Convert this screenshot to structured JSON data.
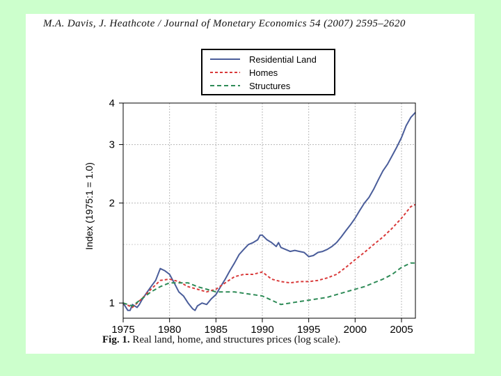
{
  "header": {
    "citation": "M.A. Davis, J. Heathcote / Journal of Monetary Economics 54 (2007) 2595–2620"
  },
  "caption": {
    "label": "Fig. 1.",
    "text": "Real land, home, and structures prices (log scale)."
  },
  "chart_data": {
    "type": "line",
    "title": "",
    "xlabel": "",
    "ylabel": "Index (1975:1 = 1.0)",
    "y_scale": "log",
    "xlim": [
      1975,
      2006.5
    ],
    "ylim": [
      0.9,
      4.0
    ],
    "x_ticks": [
      "1975",
      "1980",
      "1985",
      "1990",
      "1995",
      "2000",
      "2005"
    ],
    "y_ticks": [
      "1",
      "2",
      "3",
      "4"
    ],
    "grid": true,
    "legend": {
      "position": "top-center"
    },
    "series": [
      {
        "name": "Residential Land",
        "color": "#4a5d9a",
        "style": "solid",
        "x": [
          1975.0,
          1975.5,
          1975.75,
          1976.0,
          1976.5,
          1976.75,
          1977.0,
          1977.5,
          1978.0,
          1978.5,
          1979.0,
          1979.5,
          1980.0,
          1980.5,
          1981.0,
          1981.5,
          1982.0,
          1982.5,
          1982.75,
          1983.0,
          1983.5,
          1984.0,
          1984.5,
          1985.0,
          1985.5,
          1986.0,
          1986.5,
          1987.0,
          1987.5,
          1988.0,
          1988.5,
          1989.0,
          1989.5,
          1989.75,
          1990.0,
          1990.5,
          1991.0,
          1991.5,
          1991.75,
          1992.0,
          1992.5,
          1993.0,
          1993.5,
          1994.0,
          1994.5,
          1995.0,
          1995.5,
          1996.0,
          1996.5,
          1997.0,
          1997.5,
          1998.0,
          1998.5,
          1999.0,
          1999.5,
          2000.0,
          2000.5,
          2001.0,
          2001.5,
          2002.0,
          2002.5,
          2003.0,
          2003.5,
          2004.0,
          2004.5,
          2005.0,
          2005.5,
          2006.0,
          2006.5
        ],
        "values": [
          1.0,
          0.95,
          0.95,
          0.99,
          0.97,
          0.99,
          1.02,
          1.07,
          1.12,
          1.17,
          1.27,
          1.25,
          1.22,
          1.15,
          1.08,
          1.05,
          1.0,
          0.96,
          0.95,
          0.98,
          1.0,
          0.99,
          1.03,
          1.06,
          1.12,
          1.18,
          1.25,
          1.32,
          1.4,
          1.45,
          1.5,
          1.52,
          1.55,
          1.6,
          1.6,
          1.55,
          1.52,
          1.48,
          1.52,
          1.47,
          1.45,
          1.43,
          1.44,
          1.43,
          1.42,
          1.38,
          1.39,
          1.42,
          1.43,
          1.45,
          1.48,
          1.52,
          1.58,
          1.65,
          1.72,
          1.8,
          1.9,
          2.0,
          2.08,
          2.2,
          2.35,
          2.5,
          2.62,
          2.78,
          2.95,
          3.15,
          3.42,
          3.62,
          3.75
        ]
      },
      {
        "name": "Homes",
        "color": "#d93a3a",
        "style": "dashed",
        "x": [
          1975,
          1976,
          1977,
          1978,
          1979,
          1980,
          1981,
          1982,
          1983,
          1984,
          1985,
          1986,
          1987,
          1988,
          1989,
          1990,
          1991,
          1992,
          1993,
          1994,
          1995,
          1996,
          1997,
          1998,
          1999,
          2000,
          2001,
          2002,
          2003,
          2004,
          2005,
          2006,
          2006.5
        ],
        "values": [
          1.0,
          0.97,
          1.03,
          1.1,
          1.17,
          1.18,
          1.16,
          1.12,
          1.1,
          1.08,
          1.1,
          1.15,
          1.2,
          1.22,
          1.22,
          1.24,
          1.18,
          1.16,
          1.15,
          1.16,
          1.16,
          1.17,
          1.19,
          1.22,
          1.28,
          1.35,
          1.42,
          1.5,
          1.58,
          1.68,
          1.8,
          1.95,
          1.98
        ]
      },
      {
        "name": "Structures",
        "color": "#2e8b57",
        "style": "dashed",
        "x": [
          1975,
          1976,
          1977,
          1978,
          1979,
          1980,
          1981,
          1982,
          1983,
          1984,
          1985,
          1986,
          1987,
          1988,
          1989,
          1990,
          1991,
          1992,
          1993,
          1994,
          1995,
          1996,
          1997,
          1998,
          1999,
          2000,
          2001,
          2002,
          2003,
          2004,
          2005,
          2006,
          2006.5
        ],
        "values": [
          1.0,
          0.98,
          1.03,
          1.08,
          1.12,
          1.15,
          1.15,
          1.15,
          1.12,
          1.1,
          1.08,
          1.08,
          1.08,
          1.07,
          1.06,
          1.05,
          1.02,
          0.99,
          1.0,
          1.01,
          1.02,
          1.03,
          1.04,
          1.06,
          1.08,
          1.1,
          1.12,
          1.15,
          1.18,
          1.22,
          1.28,
          1.32,
          1.32
        ]
      }
    ]
  }
}
